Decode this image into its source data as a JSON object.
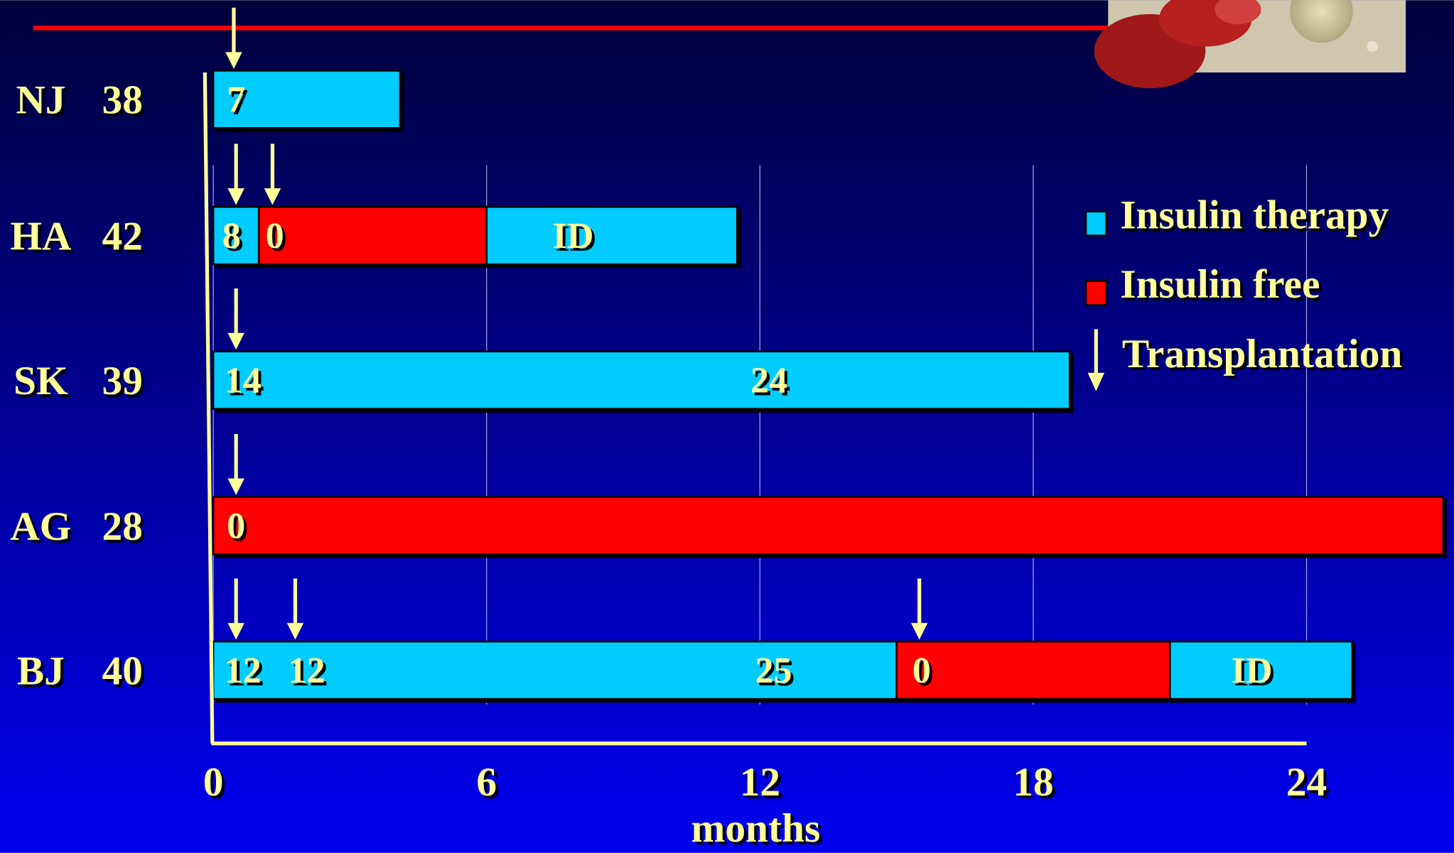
{
  "chart_data": {
    "type": "timeline",
    "xlabel": "months",
    "xlim": [
      0,
      24
    ],
    "xticks": [
      0,
      6,
      12,
      18,
      24
    ],
    "grid": true,
    "series": [
      {
        "name": "Insulin therapy",
        "color": "#00ccff"
      },
      {
        "name": "Insulin free",
        "color": "#ff0000"
      }
    ],
    "marker": {
      "name": "Transplantation",
      "color": "#ffff99"
    },
    "rows": [
      {
        "label": "NJ",
        "age": 38,
        "segments": [
          {
            "series": 0,
            "start": 0,
            "end": 4.1
          }
        ],
        "transplants": [
          0.45
        ],
        "notes": [
          {
            "x": 0.5,
            "text": "7"
          }
        ]
      },
      {
        "label": "HA",
        "age": 42,
        "segments": [
          {
            "series": 0,
            "start": 0,
            "end": 1.0
          },
          {
            "series": 1,
            "start": 1.0,
            "end": 6.0
          },
          {
            "series": 0,
            "start": 6.0,
            "end": 11.5
          }
        ],
        "transplants": [
          0.5,
          1.3
        ],
        "notes": [
          {
            "x": 0.4,
            "text": "8"
          },
          {
            "x": 1.35,
            "text": "0"
          },
          {
            "x": 7.9,
            "text": "ID"
          }
        ]
      },
      {
        "label": "SK",
        "age": 39,
        "segments": [
          {
            "series": 0,
            "start": 0,
            "end": 18.8
          }
        ],
        "transplants": [
          0.5
        ],
        "notes": [
          {
            "x": 0.65,
            "text": "14"
          },
          {
            "x": 12.2,
            "text": "24"
          }
        ]
      },
      {
        "label": "AG",
        "age": 28,
        "segments": [
          {
            "series": 1,
            "start": 0,
            "end": 27.0
          }
        ],
        "transplants": [
          0.5
        ],
        "notes": [
          {
            "x": 0.5,
            "text": "0"
          }
        ]
      },
      {
        "label": "BJ",
        "age": 40,
        "segments": [
          {
            "series": 0,
            "start": 0,
            "end": 15.0
          },
          {
            "series": 1,
            "start": 15.0,
            "end": 21.0
          },
          {
            "series": 0,
            "start": 21.0,
            "end": 25.0
          }
        ],
        "transplants": [
          0.5,
          1.8,
          15.5
        ],
        "notes": [
          {
            "x": 0.65,
            "text": "12"
          },
          {
            "x": 2.05,
            "text": "12"
          },
          {
            "x": 12.3,
            "text": "25"
          },
          {
            "x": 15.55,
            "text": "0"
          },
          {
            "x": 22.8,
            "text": "ID"
          }
        ]
      }
    ]
  }
}
